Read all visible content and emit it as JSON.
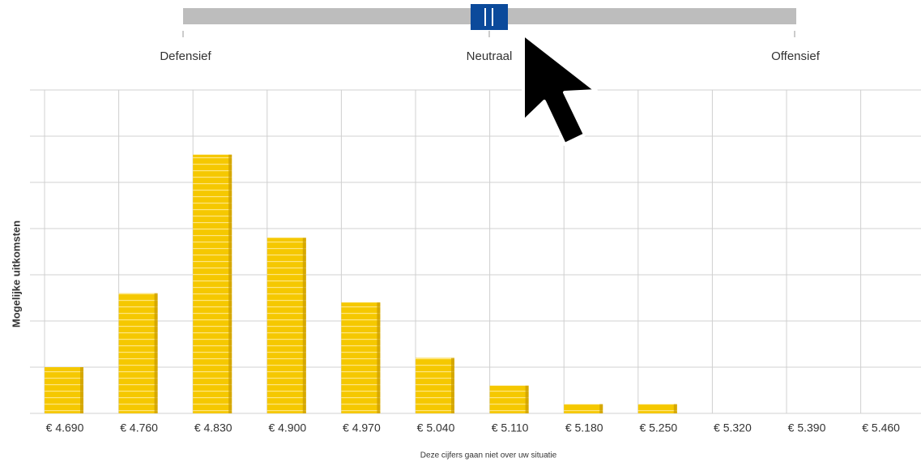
{
  "slider": {
    "labels": [
      "Defensief",
      "Neutraal",
      "Offensief"
    ]
  },
  "chart_data": {
    "type": "bar",
    "y_label": "Mogelijke uitkomsten",
    "x_label": "Deze cijfers gaan niet over uw situatie",
    "categories": [
      "€ 4.690",
      "€ 4.760",
      "€ 4.830",
      "€ 4.900",
      "€ 4.970",
      "€ 5.040",
      "€ 5.110",
      "€ 5.180",
      "€ 5.250",
      "€ 5.320",
      "€ 5.390",
      "€ 5.460"
    ],
    "values": [
      1.0,
      2.6,
      5.6,
      3.8,
      2.4,
      1.2,
      0.6,
      0.2,
      0.2,
      0,
      0,
      0
    ],
    "color": "#f5c800",
    "ylim": [
      0,
      7
    ],
    "yticks": [
      0,
      1,
      2,
      3,
      4,
      5,
      6,
      7
    ],
    "grid": true
  }
}
